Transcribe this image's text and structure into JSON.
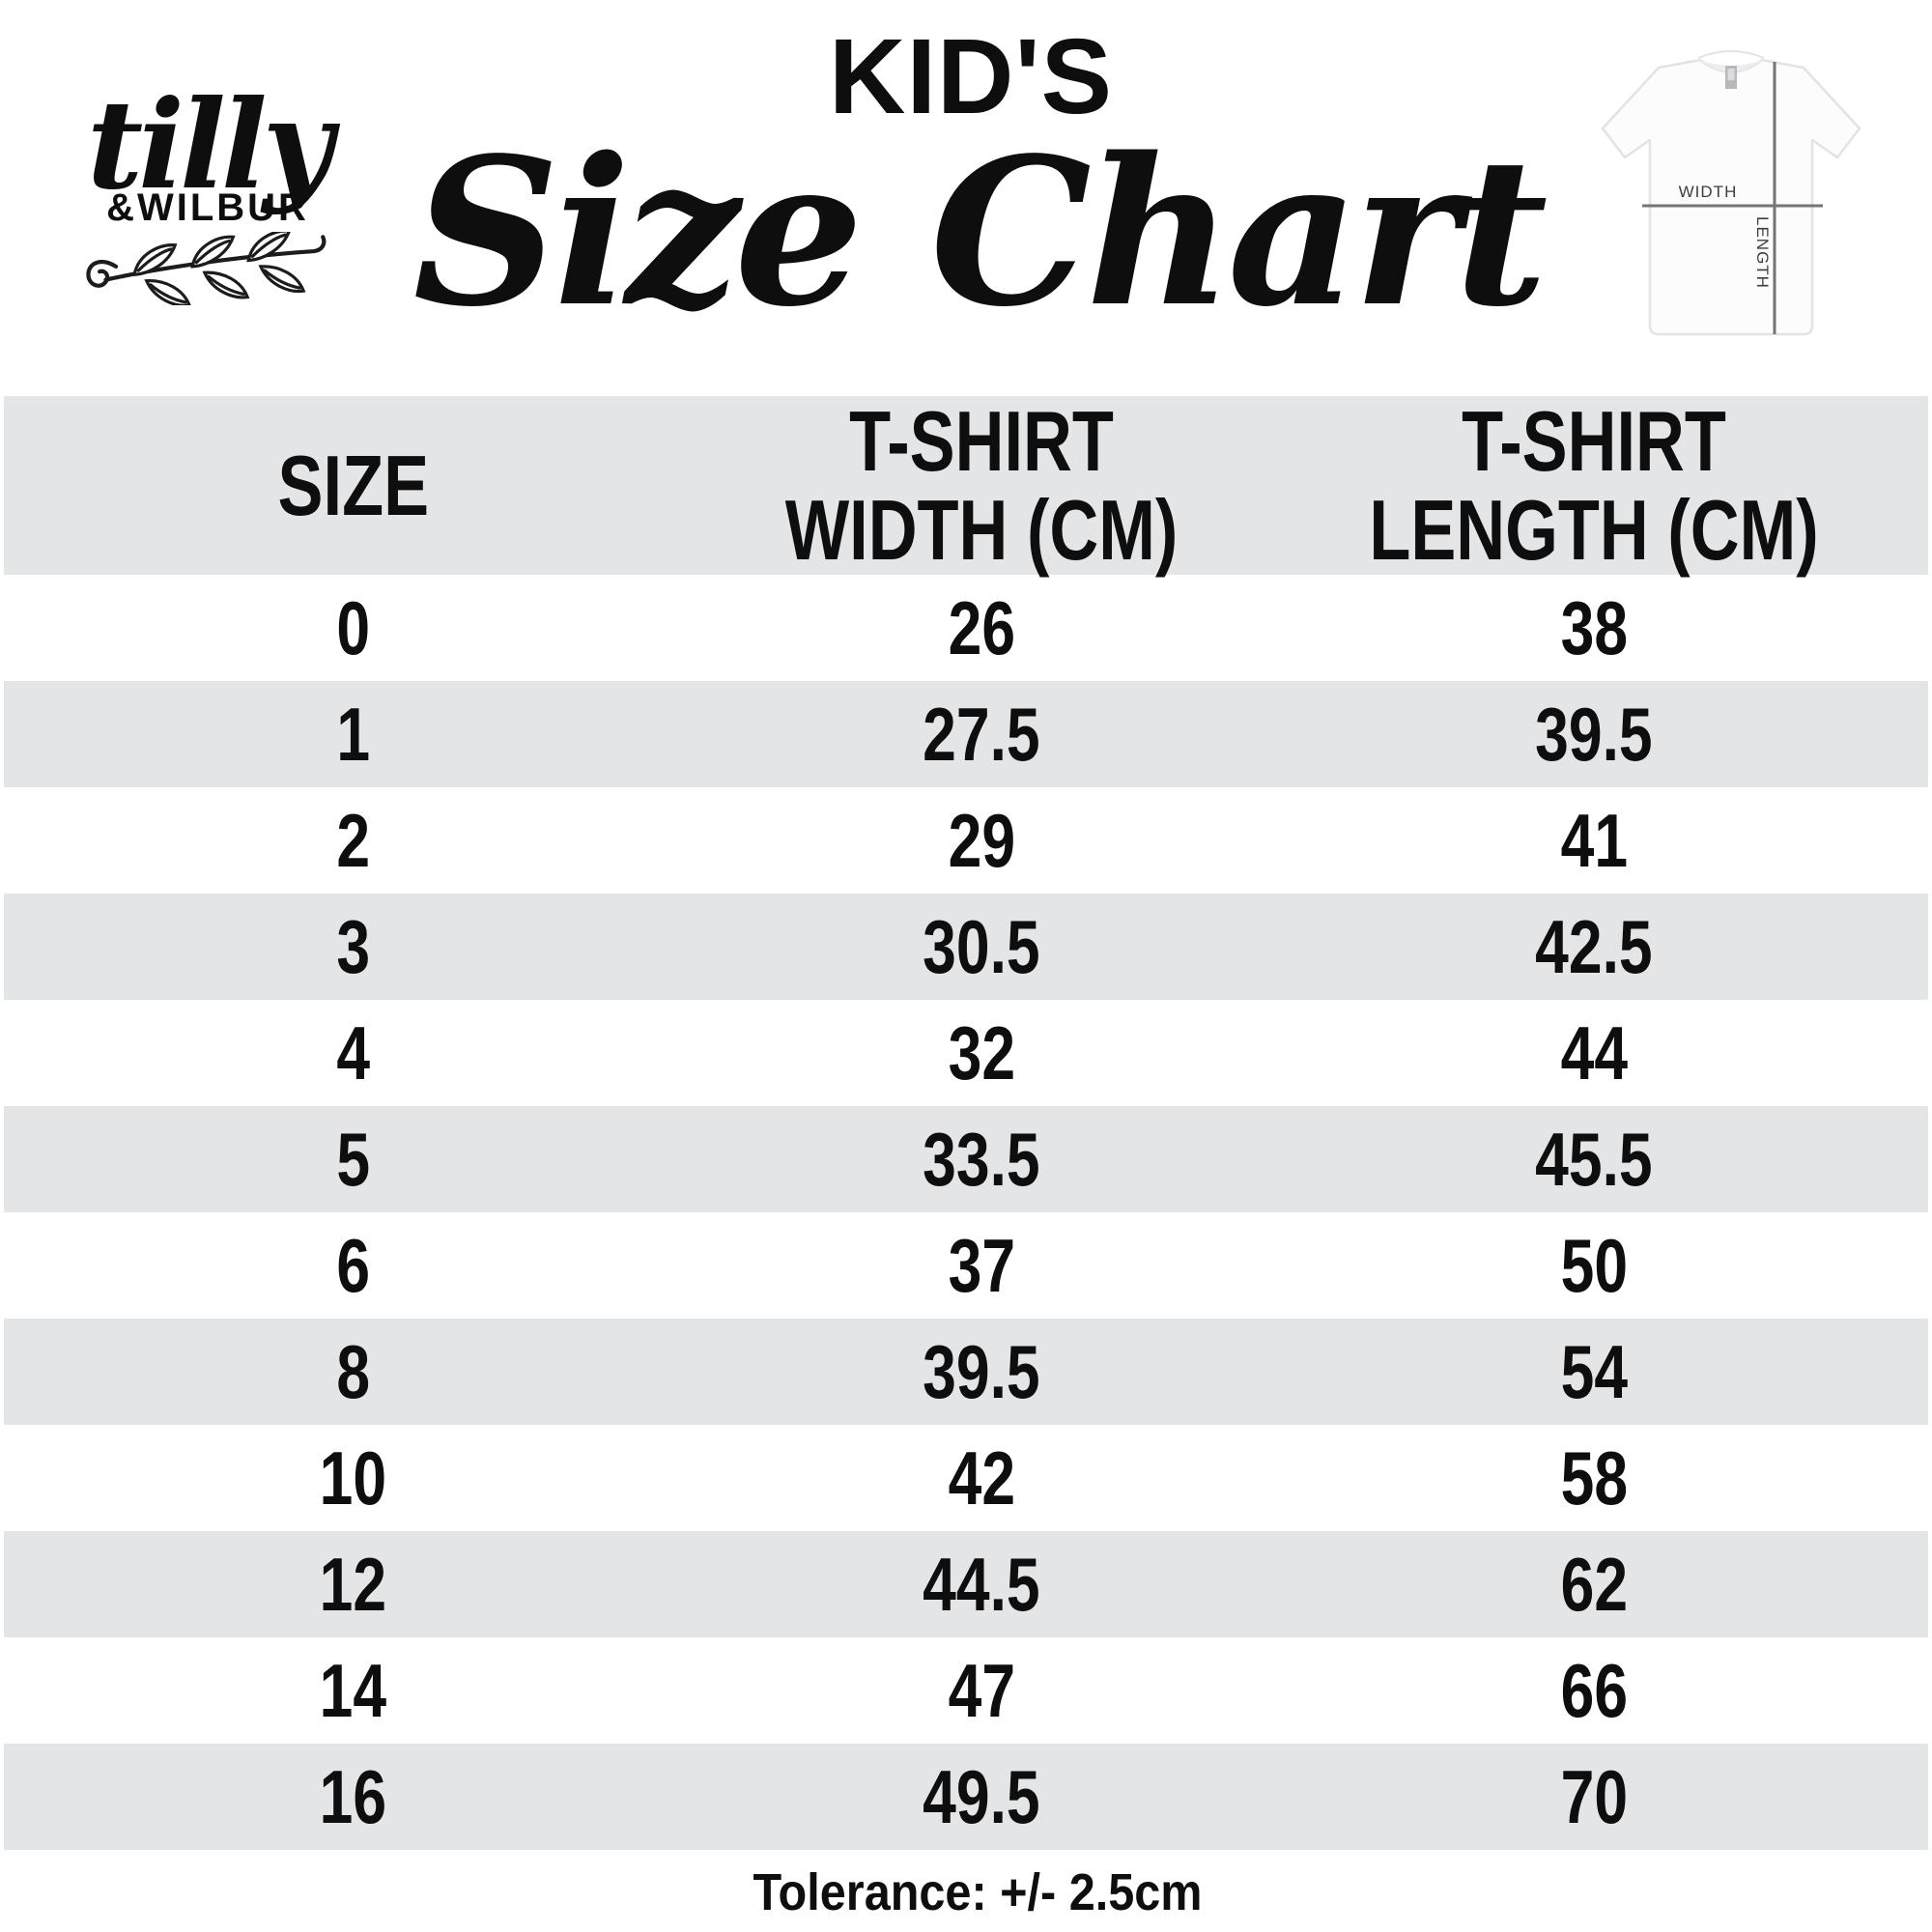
{
  "brand": {
    "name_script": "tilly",
    "name_caps": "&WILBUR"
  },
  "title": {
    "kicker": "KID'S",
    "headline": "Size Chart"
  },
  "shirt_diagram": {
    "width_label": "WIDTH",
    "length_label": "LENGTH"
  },
  "size_table": {
    "columns": [
      "SIZE",
      "T-SHIRT WIDTH (CM)",
      "T-SHIRT LENGTH (CM)"
    ],
    "rows": [
      {
        "size": "0",
        "width": "26",
        "length": "38"
      },
      {
        "size": "1",
        "width": "27.5",
        "length": "39.5"
      },
      {
        "size": "2",
        "width": "29",
        "length": "41"
      },
      {
        "size": "3",
        "width": "30.5",
        "length": "42.5"
      },
      {
        "size": "4",
        "width": "32",
        "length": "44"
      },
      {
        "size": "5",
        "width": "33.5",
        "length": "45.5"
      },
      {
        "size": "6",
        "width": "37",
        "length": "50"
      },
      {
        "size": "8",
        "width": "39.5",
        "length": "54"
      },
      {
        "size": "10",
        "width": "42",
        "length": "58"
      },
      {
        "size": "12",
        "width": "44.5",
        "length": "62"
      },
      {
        "size": "14",
        "width": "47",
        "length": "66"
      },
      {
        "size": "16",
        "width": "49.5",
        "length": "70"
      }
    ],
    "tolerance_note": "Tolerance: +/- 2.5cm"
  },
  "colors": {
    "row_alt_gray": "#e4e5e7",
    "text": "#0e0e0e",
    "diagram_line": "#737476"
  },
  "chart_data": {
    "type": "table",
    "title": "KID'S Size Chart",
    "columns": [
      "SIZE",
      "T-SHIRT WIDTH (CM)",
      "T-SHIRT LENGTH (CM)"
    ],
    "categories": [
      "0",
      "1",
      "2",
      "3",
      "4",
      "5",
      "6",
      "8",
      "10",
      "12",
      "14",
      "16"
    ],
    "series": [
      {
        "name": "T-SHIRT WIDTH (CM)",
        "values": [
          26,
          27.5,
          29,
          30.5,
          32,
          33.5,
          37,
          39.5,
          42,
          44.5,
          47,
          49.5
        ]
      },
      {
        "name": "T-SHIRT LENGTH (CM)",
        "values": [
          38,
          39.5,
          41,
          42.5,
          44,
          45.5,
          50,
          54,
          58,
          62,
          66,
          70
        ]
      }
    ],
    "note": "Tolerance: +/- 2.5cm"
  }
}
